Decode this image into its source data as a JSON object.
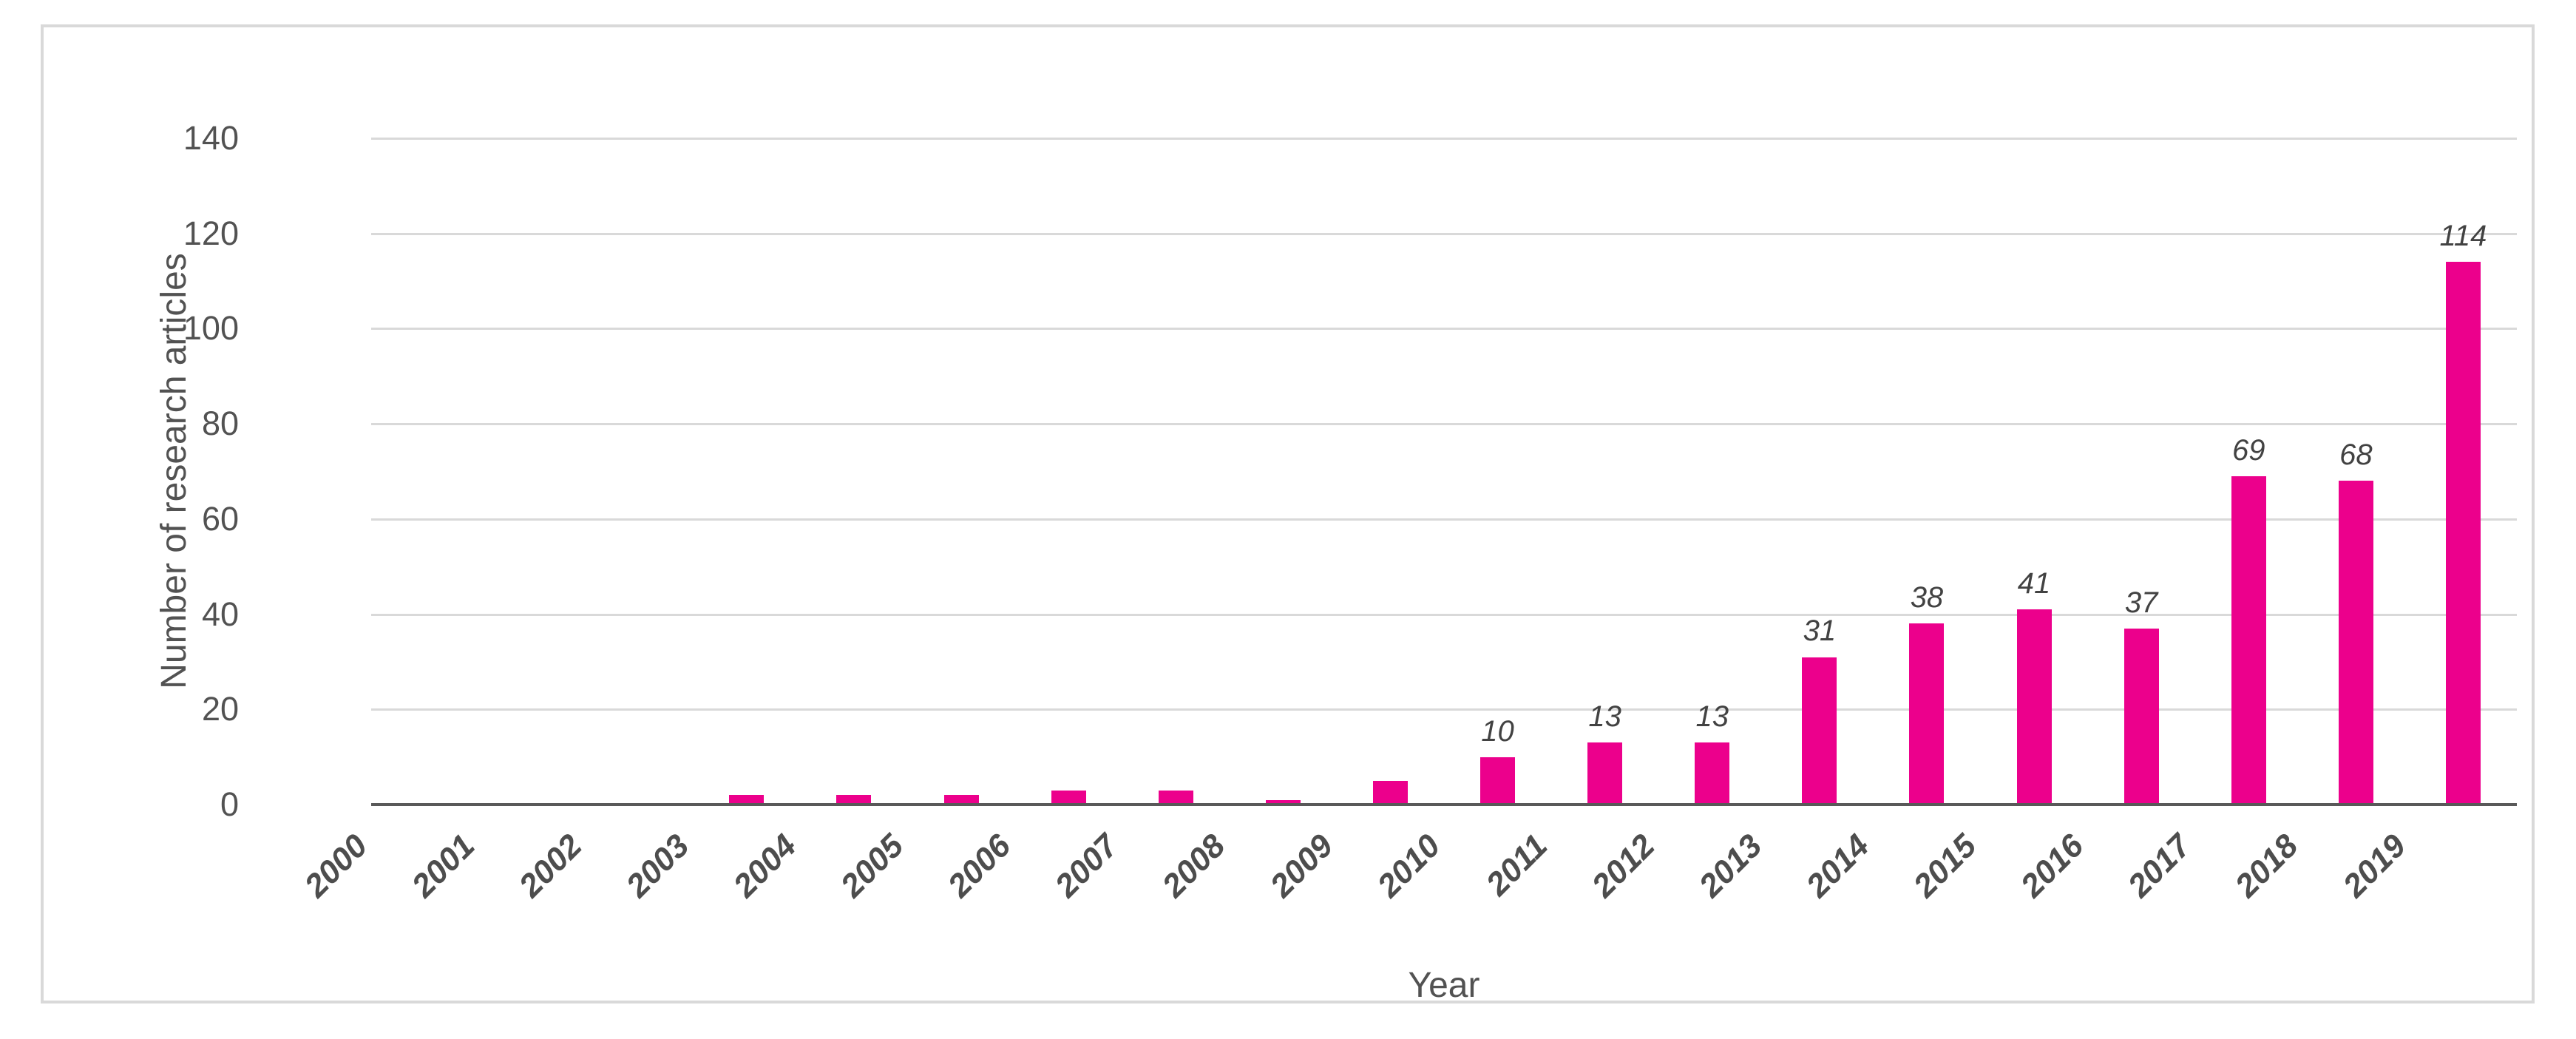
{
  "chart_data": {
    "type": "bar",
    "title": "",
    "xlabel": "Year",
    "ylabel": "Number of research articles",
    "categories": [
      "2000",
      "2001",
      "2002",
      "2003",
      "2004",
      "2005",
      "2006",
      "2007",
      "2008",
      "2009",
      "2010",
      "2011",
      "2012",
      "2013",
      "2014",
      "2015",
      "2016",
      "2017",
      "2018",
      "2019"
    ],
    "values": [
      0,
      0,
      0,
      2,
      2,
      2,
      3,
      3,
      1,
      5,
      10,
      13,
      13,
      31,
      38,
      41,
      37,
      69,
      68,
      114
    ],
    "data_labels": [
      "",
      "",
      "",
      "",
      "",
      "",
      "",
      "",
      "",
      "",
      "10",
      "13",
      "13",
      "31",
      "38",
      "41",
      "37",
      "69",
      "68",
      "114"
    ],
    "y_ticks": [
      0,
      20,
      40,
      60,
      80,
      100,
      120,
      140
    ],
    "ylim": [
      0,
      140
    ],
    "grid": true,
    "legend_position": "none",
    "bar_color": "#EC008C",
    "gridline_color": "#D9D9D9",
    "axis_line_color": "#595959",
    "tick_text_color": "#525252",
    "data_label_color": "#424242",
    "frame_border_color": "#D9D9D9",
    "background_color": "#FFFFFF"
  }
}
